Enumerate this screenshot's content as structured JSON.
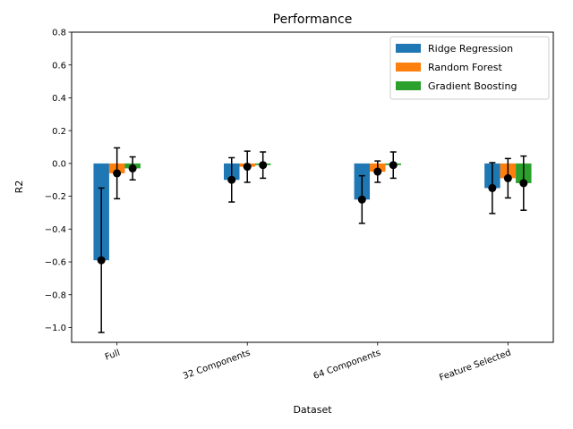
{
  "chart_data": {
    "type": "bar",
    "title": "Performance",
    "xlabel": "Dataset",
    "ylabel": "R2",
    "ylim": [
      -1.09,
      0.8
    ],
    "yticks": [
      -1.0,
      -0.8,
      -0.6,
      -0.4,
      -0.2,
      0.0,
      0.2,
      0.4,
      0.6,
      0.8
    ],
    "ytick_labels": [
      "−1.0",
      "−0.8",
      "−0.6",
      "−0.4",
      "−0.2",
      "0.0",
      "0.2",
      "0.4",
      "0.6",
      "0.8"
    ],
    "categories": [
      "Full",
      "32 Components",
      "64 Components",
      "Feature Selected"
    ],
    "xtick_rotation_deg": -20,
    "grid": false,
    "legend_position": "top-right",
    "series": [
      {
        "name": "Ridge Regression",
        "color": "#1f77b4",
        "values": [
          -0.59,
          -0.1,
          -0.22,
          -0.15
        ],
        "errors": [
          0.44,
          0.135,
          0.145,
          0.155
        ]
      },
      {
        "name": "Random Forest",
        "color": "#ff7f0e",
        "values": [
          -0.06,
          -0.02,
          -0.05,
          -0.09
        ],
        "errors": [
          0.155,
          0.095,
          0.065,
          0.12
        ]
      },
      {
        "name": "Gradient Boosting",
        "color": "#2ca02c",
        "values": [
          -0.03,
          -0.01,
          -0.01,
          -0.12
        ],
        "errors": [
          0.07,
          0.08,
          0.08,
          0.165
        ]
      }
    ],
    "error_marker_color": "#000000"
  }
}
